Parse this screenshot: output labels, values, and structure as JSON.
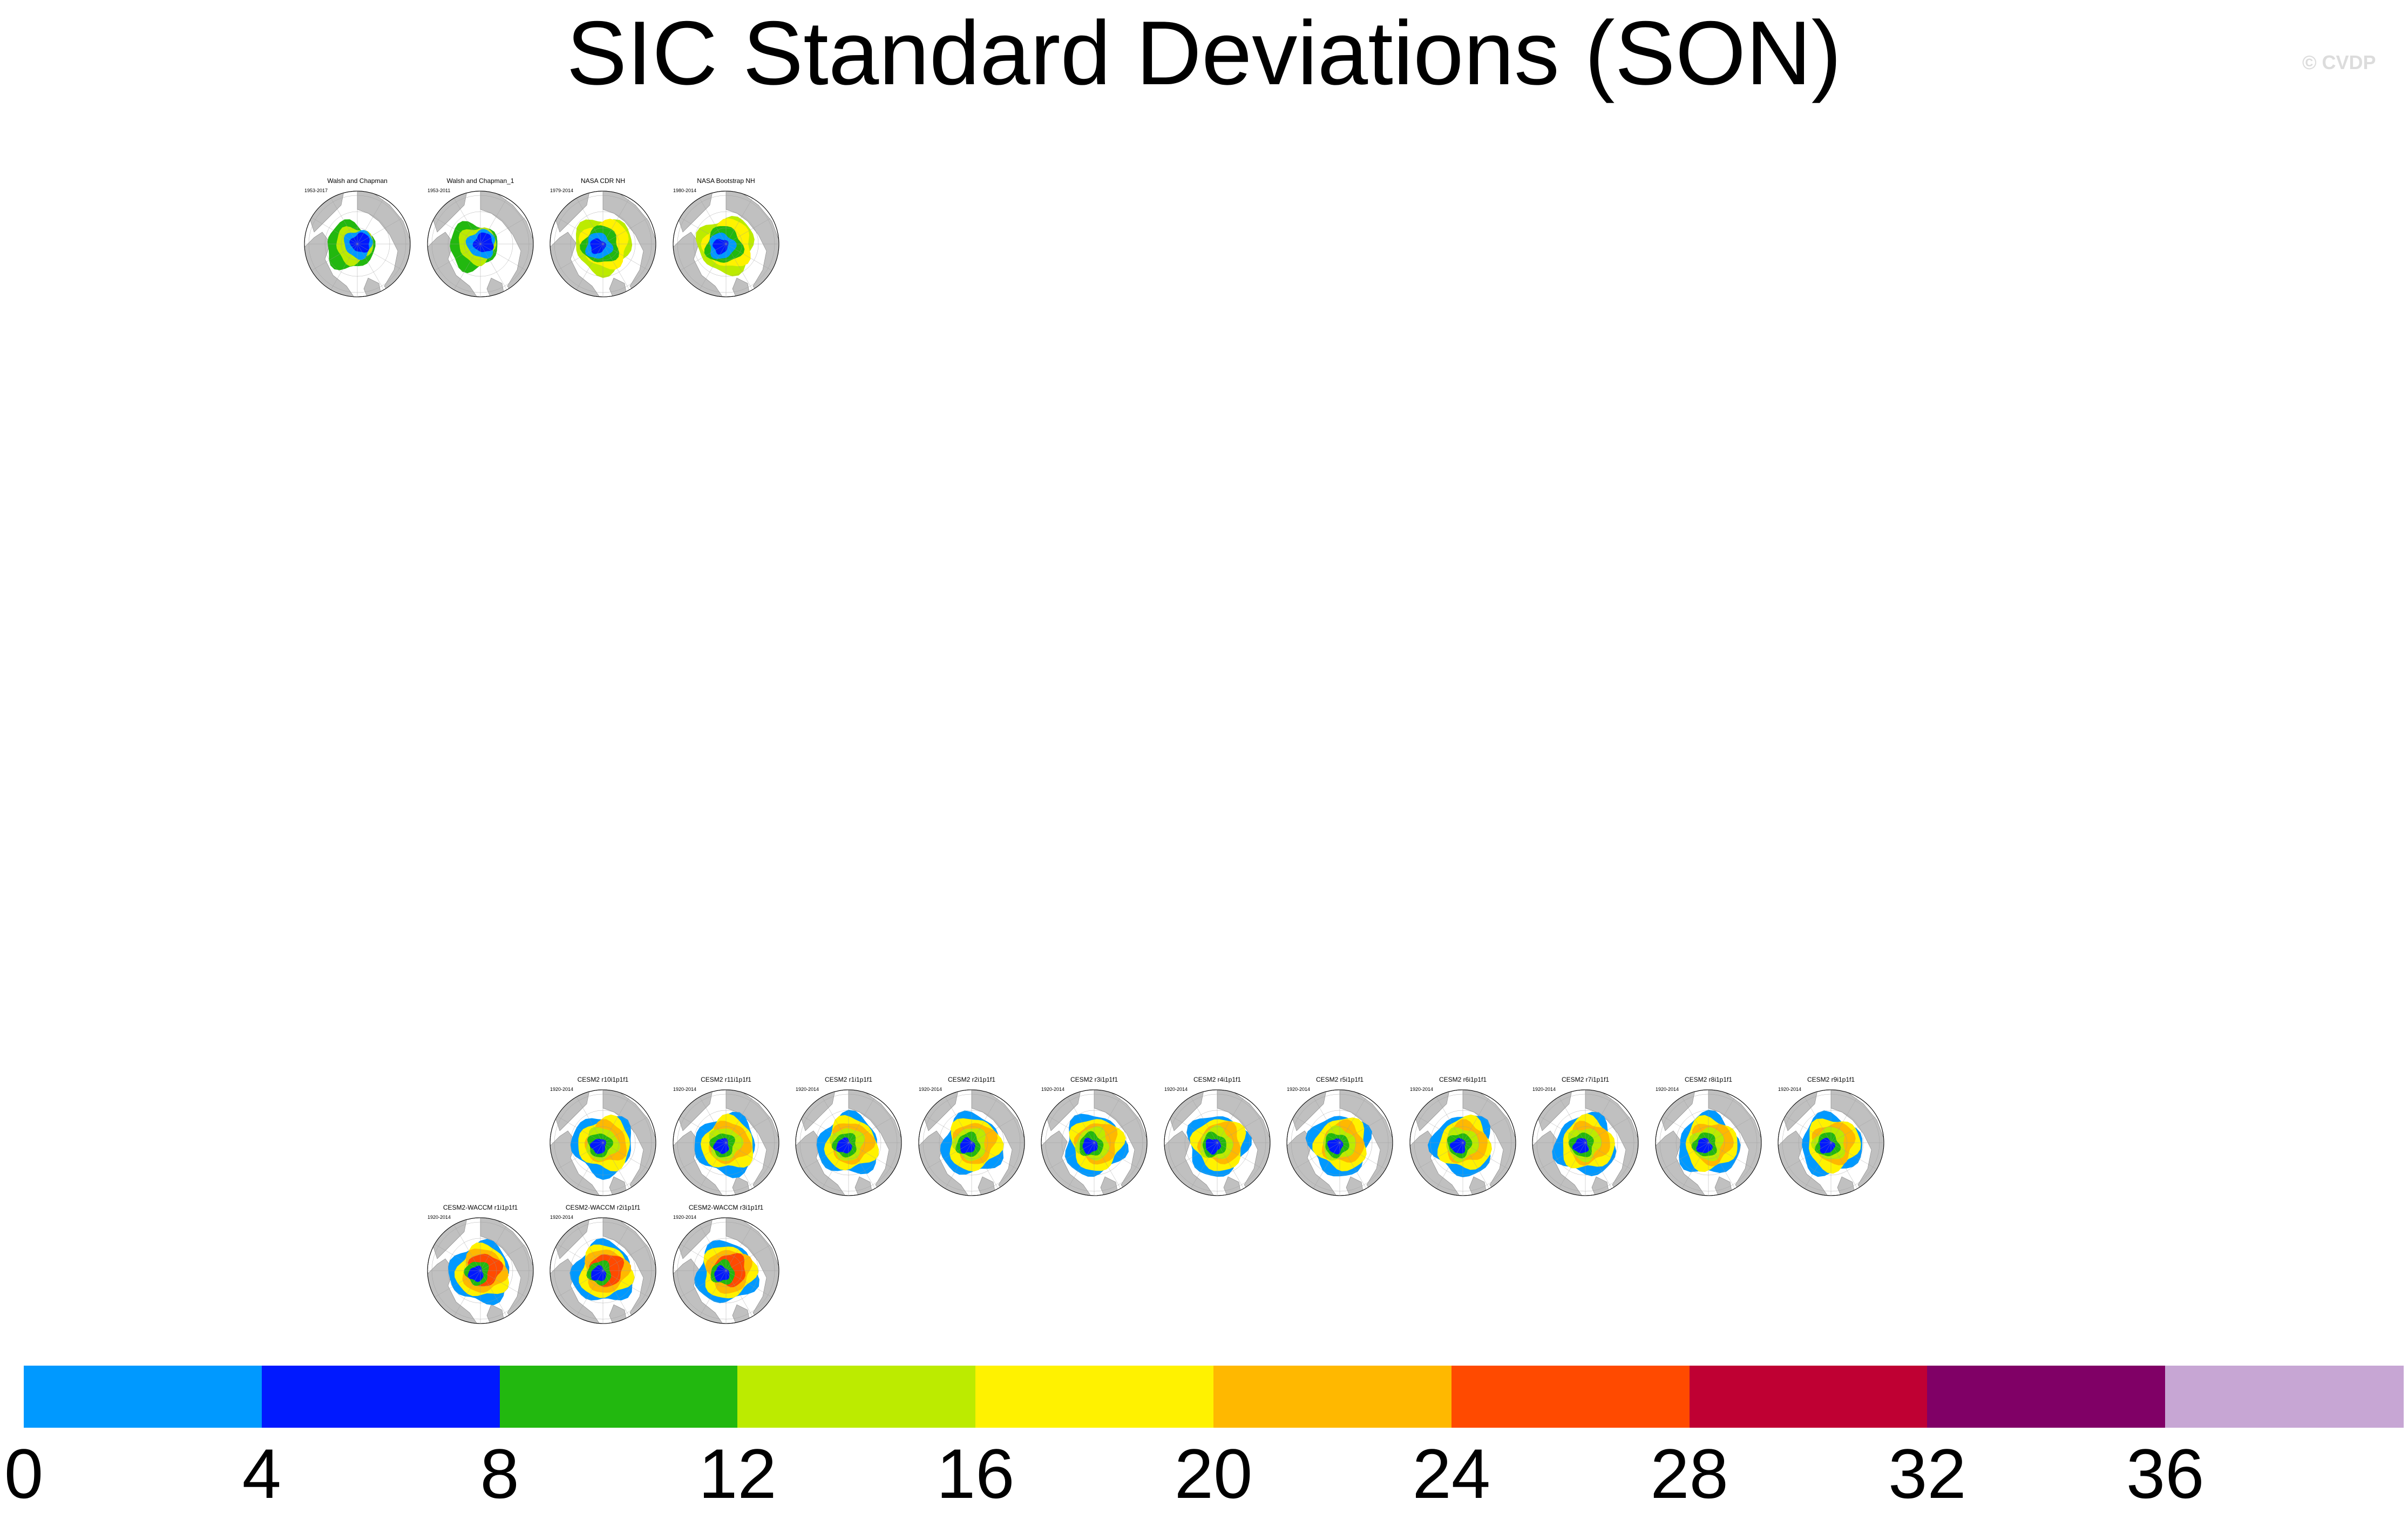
{
  "title": "SIC Standard Deviations (SON)",
  "credit": "© CVDP",
  "observations": [
    {
      "title": "Walsh and Chapman",
      "years": "1953-2017",
      "variant": "wc1"
    },
    {
      "title": "Walsh and Chapman_1",
      "years": "1953-2011",
      "variant": "wc2"
    },
    {
      "title": "NASA CDR NH",
      "years": "1979-2014",
      "variant": "cdr"
    },
    {
      "title": "NASA Bootstrap NH",
      "years": "1980-2014",
      "variant": "bs"
    }
  ],
  "models_row1": [
    {
      "title": "CESM2 r10i1p1f1",
      "years": "1920-2014"
    },
    {
      "title": "CESM2 r11i1p1f1",
      "years": "1920-2014"
    },
    {
      "title": "CESM2 r1i1p1f1",
      "years": "1920-2014"
    },
    {
      "title": "CESM2 r2i1p1f1",
      "years": "1920-2014"
    },
    {
      "title": "CESM2 r3i1p1f1",
      "years": "1920-2014"
    },
    {
      "title": "CESM2 r4i1p1f1",
      "years": "1920-2014"
    },
    {
      "title": "CESM2 r5i1p1f1",
      "years": "1920-2014"
    },
    {
      "title": "CESM2 r6i1p1f1",
      "years": "1920-2014"
    },
    {
      "title": "CESM2 r7i1p1f1",
      "years": "1920-2014"
    },
    {
      "title": "CESM2 r8i1p1f1",
      "years": "1920-2014"
    },
    {
      "title": "CESM2 r9i1p1f1",
      "years": "1920-2014"
    }
  ],
  "models_row2": [
    {
      "title": "CESM2-WACCM r1i1p1f1",
      "years": "1920-2014"
    },
    {
      "title": "CESM2-WACCM r2i1p1f1",
      "years": "1920-2014"
    },
    {
      "title": "CESM2-WACCM r3i1p1f1",
      "years": "1920-2014"
    }
  ],
  "colorbar": {
    "colors": [
      "#0099ff",
      "#0019ff",
      "#22b80f",
      "#bceb00",
      "#fff200",
      "#ffb800",
      "#ff4a00",
      "#bf0033",
      "#800066",
      "#c7a6d4"
    ],
    "labels": [
      "0",
      "4",
      "8",
      "12",
      "16",
      "20",
      "24",
      "28",
      "32",
      "36"
    ]
  }
}
